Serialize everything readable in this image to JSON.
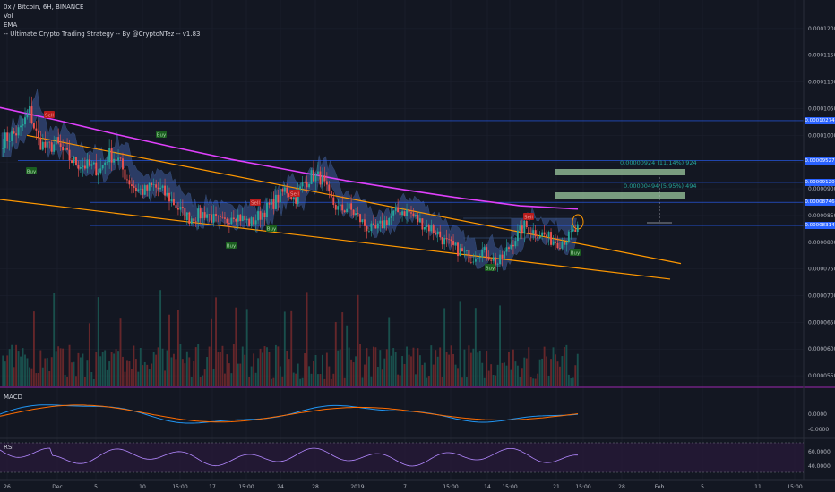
{
  "legend": {
    "symbol": "0x / Bitcoin, 6H, BINANCE",
    "vol": "Vol",
    "ema": "EMA",
    "strategy": "-- Ultimate Crypto Trading Strategy -- By @CryptoNTez -- v1.83"
  },
  "panels": {
    "macd_label": "MACD",
    "rsi_label": "RSI"
  },
  "colors": {
    "background": "#131722",
    "up": "#26a69a",
    "down": "#ef5350",
    "ema": "#e040fb",
    "trendline": "#ff9800",
    "cloud": "#4a6ab8",
    "hline": "#2962ff",
    "macd": "#2196f3",
    "signal": "#ff6d00",
    "rsi": "#9c27b0"
  },
  "chart_data": [
    {
      "type": "candlestick",
      "price_axis_ticks": [
        "0.00012000",
        "0.00011500",
        "0.00011000",
        "0.00010500",
        "0.00010000",
        "0.00009500",
        "0.00009000",
        "0.00008500",
        "0.00008000",
        "0.00007500",
        "0.00007000",
        "0.00006500",
        "0.00006000",
        "0.00005500"
      ],
      "ylim": [
        5.3e-05,
        0.0001245
      ],
      "time_axis_ticks": [
        "26",
        "Dec",
        "5",
        "10",
        "15:00",
        "17",
        "15:00",
        "24",
        "28",
        "2019",
        "7",
        "15:00",
        "14",
        "15:00",
        "21",
        "15:00",
        "28",
        "Feb",
        "5",
        "11",
        "15:00"
      ],
      "series_hint": [
        9.9e-05,
        0.0001,
        0.000101,
        0.0001045,
        9.9e-05,
        9.75e-05,
        9.85e-05,
        9.65e-05,
        9.5e-05,
        9.45e-05,
        9.4e-05,
        9.35e-05,
        9.65e-05,
        9.55e-05,
        9.2e-05,
        9e-05,
        8.95e-05,
        9.05e-05,
        8.95e-05,
        8.8e-05,
        8.6e-05,
        8.45e-05,
        8.5e-05,
        8.55e-05,
        8.4e-05,
        8.35e-05,
        8.55e-05,
        8.45e-05,
        8.35e-05,
        8.5e-05,
        8.65e-05,
        8.8e-05,
        9e-05,
        8.8e-05,
        9.1e-05,
        9.25e-05,
        9.2e-05,
        8.8e-05,
        8.6e-05,
        8.65e-05,
        8.5e-05,
        8.3e-05,
        8.2e-05,
        8.35e-05,
        8.5e-05,
        8.6e-05,
        8.55e-05,
        8.4e-05,
        8.3e-05,
        8.2e-05,
        8e-05,
        7.9e-05,
        7.8e-05,
        7.7e-05,
        7.85e-05,
        7.75e-05,
        7.6e-05,
        7.85e-05,
        8.1e-05,
        8.3e-05,
        8.2e-05,
        8.15e-05,
        8.05e-05,
        8e-05,
        8.1e-05,
        8.25e-05
      ],
      "ema_hint": [
        0.0001052,
        0.0001028,
        0.0001002,
        9.78e-05,
        9.55e-05,
        9.35e-05,
        9.15e-05,
        8.98e-05,
        8.82e-05,
        8.68e-05,
        8.62e-05
      ],
      "horizontal_levels": [
        "0.00010274",
        "0.00009527",
        "0.00009120",
        "0.00008746",
        "0.00008314"
      ],
      "signals": [
        {
          "label": "Buy",
          "kind": "buy"
        },
        {
          "label": "Sell",
          "kind": "sell"
        },
        {
          "label": "Buy",
          "kind": "buy"
        },
        {
          "label": "Buy",
          "kind": "buy"
        },
        {
          "label": "Sell",
          "kind": "sell"
        },
        {
          "label": "Sell",
          "kind": "sell"
        },
        {
          "label": "Buy",
          "kind": "buy"
        },
        {
          "label": "Buy",
          "kind": "buy"
        },
        {
          "label": "Sell",
          "kind": "sell"
        },
        {
          "label": "Buy",
          "kind": "buy"
        }
      ],
      "measurements": [
        {
          "text": "0.00000924 (11.14%) 924"
        },
        {
          "text": "0.00000494 (5.95%) 494"
        }
      ]
    },
    {
      "type": "line",
      "name": "MACD",
      "y_ticks": [
        "0.0000",
        "-0.0000"
      ]
    },
    {
      "type": "line",
      "name": "RSI",
      "y_ticks": [
        "60.0000",
        "40.0000"
      ]
    }
  ]
}
